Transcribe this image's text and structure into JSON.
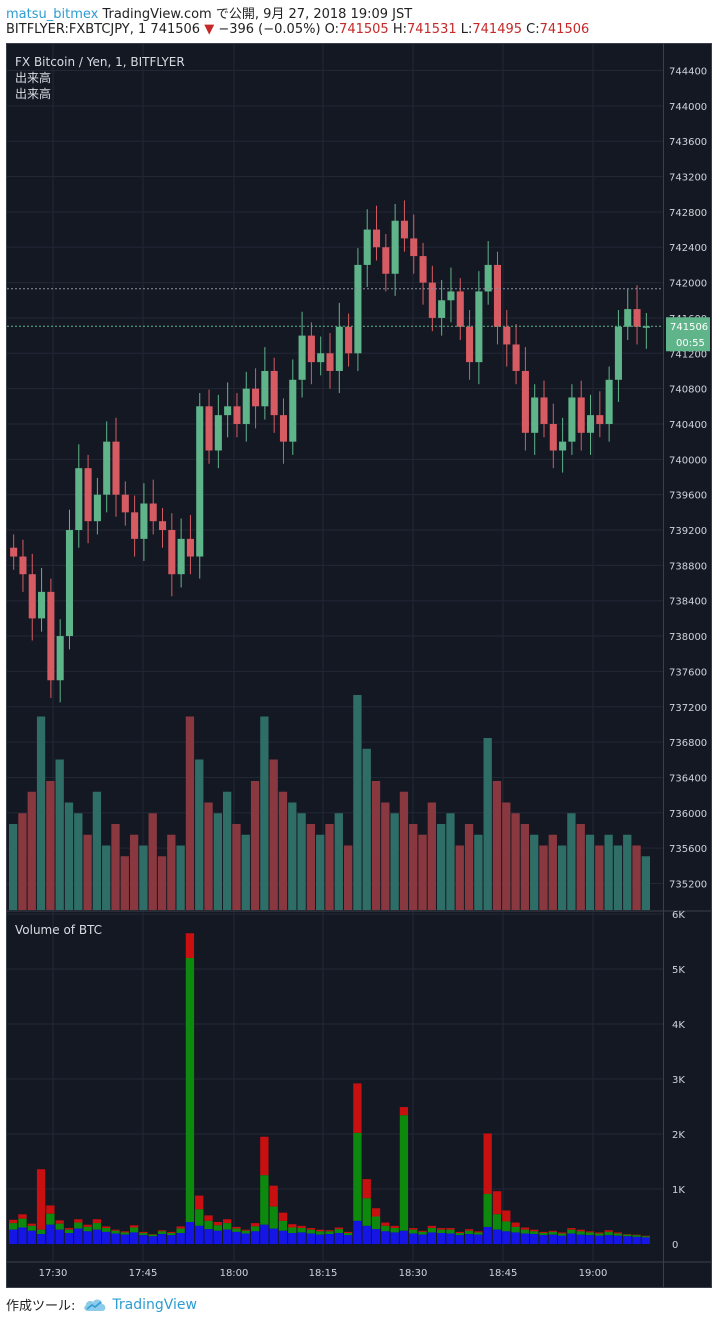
{
  "header": {
    "publisher": "matsu_bitmex",
    "site": "TradingView.com",
    "published": "で公開, 9月 27, 2018 19:09 JST",
    "symbol": "BITFLYER:FXBTCJPY, 1",
    "last": "741506",
    "change": "−396 (−0.05%)",
    "o_label": "O:",
    "o_value": "741505",
    "h_label": "H:",
    "h_value": "741531",
    "l_label": "L:",
    "l_value": "741495",
    "c_label": "C:",
    "c_value": "741506"
  },
  "overlay": {
    "title": "FX Bitcoin / Yen, 1, BITFLYER",
    "volume_label_1": "出来高",
    "volume_label_2": "出来高",
    "lower_title": "Volume of BTC"
  },
  "price_tag": {
    "value": "741506",
    "countdown": "00:55"
  },
  "footer": {
    "made_with": "作成ツール:",
    "brand": "TradingView"
  },
  "colors": {
    "background": "#141823",
    "up": "#5fb48a",
    "down": "#d65b62",
    "accent": "#2e9cd2",
    "blue_vol": "#1515e6",
    "green_vol": "#0d8a0d",
    "red_vol": "#c81010"
  },
  "chart_data": [
    {
      "type": "candlestick",
      "title": "FX Bitcoin / Yen, 1, BITFLYER",
      "ylim": [
        734900,
        744700
      ],
      "y_ticks": [
        735200,
        735600,
        736000,
        736400,
        736800,
        737200,
        737600,
        738000,
        738400,
        738800,
        739200,
        739600,
        740000,
        740400,
        740800,
        741200,
        741600,
        742000,
        742400,
        742800,
        743200,
        743600,
        744000,
        744400
      ],
      "x_ticks": [
        "17:30",
        "17:45",
        "18:00",
        "18:15",
        "18:30",
        "18:45",
        "19:00"
      ],
      "dotted_level": 741930,
      "last_price": 741506,
      "price_path": [
        738900,
        738700,
        738200,
        738500,
        737500,
        738000,
        739200,
        739900,
        739300,
        739600,
        740200,
        739600,
        739400,
        739100,
        739500,
        739300,
        739200,
        738700,
        739100,
        738900,
        740600,
        740100,
        740500,
        740600,
        740400,
        740800,
        740600,
        741000,
        740500,
        740200,
        740900,
        741400,
        741100,
        741200,
        741000,
        741500,
        741200,
        742200,
        742600,
        742400,
        742100,
        742700,
        742500,
        742300,
        742000,
        741600,
        741800,
        741900,
        741500,
        741100,
        741900,
        742200,
        741500,
        741300,
        741000,
        740300,
        740700,
        740400,
        740100,
        740200,
        740700,
        740300,
        740500,
        740400,
        740900,
        741500,
        741700,
        741500,
        741506
      ],
      "volume_series": {
        "name": "出来高",
        "values_relative": [
          0.4,
          0.45,
          0.55,
          0.9,
          0.6,
          0.7,
          0.5,
          0.45,
          0.35,
          0.55,
          0.3,
          0.4,
          0.25,
          0.35,
          0.3,
          0.45,
          0.25,
          0.35,
          0.3,
          0.9,
          0.7,
          0.5,
          0.45,
          0.55,
          0.4,
          0.35,
          0.6,
          0.9,
          0.7,
          0.55,
          0.5,
          0.45,
          0.4,
          0.35,
          0.4,
          0.45,
          0.3,
          1.0,
          0.75,
          0.6,
          0.5,
          0.45,
          0.55,
          0.4,
          0.35,
          0.5,
          0.4,
          0.45,
          0.3,
          0.4,
          0.35,
          0.8,
          0.6,
          0.5,
          0.45,
          0.4,
          0.35,
          0.3,
          0.35,
          0.3,
          0.45,
          0.4,
          0.35,
          0.3,
          0.35,
          0.3,
          0.35,
          0.3,
          0.25
        ]
      }
    },
    {
      "type": "bar",
      "title": "Volume of BTC",
      "ylim": [
        0,
        6000
      ],
      "y_ticks": [
        "0",
        "1K",
        "2K",
        "3K",
        "4K",
        "5K",
        "6K"
      ],
      "series": [
        {
          "name": "blue",
          "values": [
            260,
            300,
            240,
            180,
            350,
            260,
            200,
            280,
            230,
            260,
            220,
            190,
            170,
            210,
            160,
            140,
            180,
            160,
            200,
            400,
            330,
            270,
            240,
            260,
            220,
            190,
            230,
            350,
            280,
            240,
            200,
            210,
            190,
            170,
            180,
            200,
            160,
            420,
            330,
            270,
            230,
            210,
            240,
            190,
            170,
            210,
            200,
            190,
            160,
            180,
            170,
            310,
            260,
            230,
            210,
            190,
            180,
            160,
            170,
            150,
            190,
            170,
            160,
            150,
            160,
            150,
            140,
            130,
            120
          ]
        },
        {
          "name": "green",
          "values": [
            120,
            160,
            90,
            80,
            200,
            110,
            60,
            110,
            80,
            120,
            70,
            50,
            40,
            90,
            40,
            30,
            50,
            40,
            80,
            4800,
            300,
            150,
            100,
            120,
            60,
            50,
            90,
            900,
            400,
            180,
            100,
            80,
            70,
            60,
            50,
            70,
            40,
            1600,
            500,
            230,
            100,
            80,
            2100,
            70,
            50,
            80,
            60,
            70,
            40,
            60,
            40,
            600,
            280,
            180,
            100,
            70,
            50,
            40,
            50,
            40,
            70,
            60,
            50,
            40,
            60,
            40,
            30,
            30,
            20
          ]
        },
        {
          "name": "red",
          "values": [
            60,
            80,
            40,
            1100,
            150,
            60,
            30,
            60,
            40,
            70,
            30,
            20,
            20,
            40,
            20,
            10,
            20,
            20,
            40,
            450,
            250,
            100,
            60,
            70,
            30,
            20,
            60,
            700,
            380,
            150,
            60,
            40,
            30,
            30,
            20,
            30,
            20,
            900,
            350,
            150,
            60,
            40,
            150,
            30,
            20,
            40,
            30,
            30,
            20,
            30,
            20,
            1100,
            420,
            200,
            80,
            40,
            30,
            20,
            20,
            20,
            30,
            30,
            20,
            20,
            30,
            20,
            10,
            10,
            10
          ]
        }
      ]
    }
  ]
}
